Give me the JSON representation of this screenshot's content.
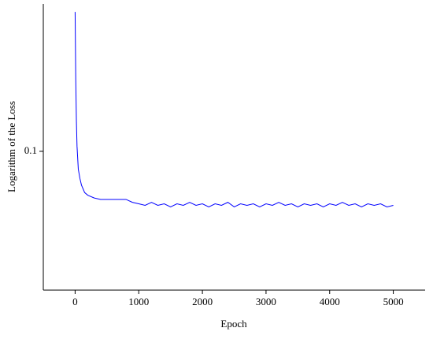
{
  "chart_data": {
    "type": "line",
    "x_label": "Epoch",
    "y_label": "Logarithm of the Loss",
    "x": [
      0,
      5,
      10,
      20,
      30,
      50,
      75,
      100,
      150,
      200,
      300,
      400,
      500,
      600,
      700,
      800,
      900,
      1000,
      1100,
      1200,
      1300,
      1400,
      1500,
      1600,
      1700,
      1800,
      1900,
      2000,
      2100,
      2200,
      2300,
      2400,
      2500,
      2600,
      2700,
      2800,
      2900,
      3000,
      3100,
      3200,
      3300,
      3400,
      3500,
      3600,
      3700,
      3800,
      3900,
      4000,
      4100,
      4200,
      4300,
      4400,
      4500,
      4600,
      4700,
      4800,
      4900,
      5000
    ],
    "values": [
      0.63,
      0.4,
      0.26,
      0.15,
      0.107,
      0.079,
      0.07,
      0.064,
      0.058,
      0.056,
      0.054,
      0.053,
      0.053,
      0.053,
      0.053,
      0.053,
      0.051,
      0.05,
      0.049,
      0.051,
      0.049,
      0.05,
      0.048,
      0.05,
      0.049,
      0.051,
      0.049,
      0.05,
      0.048,
      0.05,
      0.049,
      0.051,
      0.048,
      0.05,
      0.049,
      0.05,
      0.048,
      0.05,
      0.049,
      0.051,
      0.049,
      0.05,
      0.048,
      0.05,
      0.049,
      0.05,
      0.048,
      0.05,
      0.049,
      0.051,
      0.049,
      0.05,
      0.048,
      0.05,
      0.049,
      0.05,
      0.048,
      0.049
    ],
    "color": "#0000ff",
    "xlim": [
      -500,
      5500
    ],
    "xticks": [
      0,
      1000,
      2000,
      3000,
      4000,
      5000
    ],
    "ylim": [
      0.016,
      0.7
    ],
    "yticks": [
      0.1
    ],
    "y_scale": "log"
  }
}
